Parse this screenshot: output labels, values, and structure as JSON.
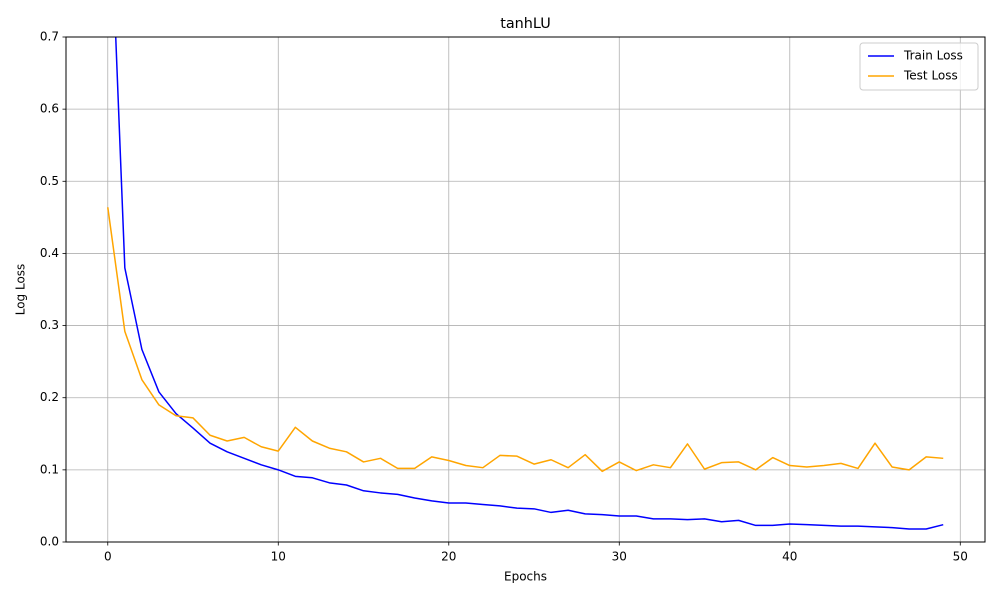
{
  "chart_data": {
    "type": "line",
    "title": "tanhLU",
    "x_label": "Epochs",
    "y_label": "Log Loss",
    "x": [
      0,
      1,
      2,
      3,
      4,
      5,
      6,
      7,
      8,
      9,
      10,
      11,
      12,
      13,
      14,
      15,
      16,
      17,
      18,
      19,
      20,
      21,
      22,
      23,
      24,
      25,
      26,
      27,
      28,
      29,
      30,
      31,
      32,
      33,
      34,
      35,
      36,
      37,
      38,
      39,
      40,
      41,
      42,
      43,
      44,
      45,
      46,
      47,
      48,
      49
    ],
    "series": [
      {
        "name": "Train Loss",
        "color": "#0000ff",
        "values": [
          0.98,
          0.38,
          0.267,
          0.208,
          0.178,
          0.158,
          0.137,
          0.125,
          0.116,
          0.107,
          0.1,
          0.091,
          0.089,
          0.082,
          0.079,
          0.071,
          0.068,
          0.066,
          0.061,
          0.057,
          0.054,
          0.054,
          0.052,
          0.05,
          0.047,
          0.046,
          0.041,
          0.044,
          0.039,
          0.038,
          0.036,
          0.036,
          0.032,
          0.032,
          0.031,
          0.032,
          0.028,
          0.03,
          0.023,
          0.023,
          0.025,
          0.024,
          0.023,
          0.022,
          0.022,
          0.021,
          0.02,
          0.018,
          0.018,
          0.024
        ]
      },
      {
        "name": "Test Loss",
        "color": "#ffa500",
        "values": [
          0.464,
          0.292,
          0.225,
          0.19,
          0.175,
          0.172,
          0.148,
          0.14,
          0.145,
          0.132,
          0.126,
          0.159,
          0.14,
          0.13,
          0.125,
          0.111,
          0.116,
          0.102,
          0.102,
          0.118,
          0.113,
          0.106,
          0.103,
          0.12,
          0.119,
          0.108,
          0.114,
          0.103,
          0.121,
          0.098,
          0.111,
          0.099,
          0.107,
          0.103,
          0.136,
          0.101,
          0.11,
          0.111,
          0.1,
          0.117,
          0.106,
          0.104,
          0.106,
          0.109,
          0.102,
          0.137,
          0.104,
          0.1,
          0.118,
          0.116
        ]
      }
    ],
    "xlim": [
      -2.45,
      51.45
    ],
    "xticks": [
      0,
      10,
      20,
      30,
      40,
      50
    ],
    "ylim": [
      0,
      0.7
    ],
    "yticks": [
      {
        "value": 0,
        "label": "0.0"
      },
      {
        "value": 0.1,
        "label": "0.1"
      },
      {
        "value": 0.2,
        "label": "0.2"
      },
      {
        "value": 0.3,
        "label": "0.3"
      },
      {
        "value": 0.4,
        "label": "0.4"
      },
      {
        "value": 0.5,
        "label": "0.5"
      },
      {
        "value": 0.6,
        "label": "0.6"
      },
      {
        "value": 0.7,
        "label": "0.7"
      }
    ],
    "grid": true,
    "legend": "upper right"
  }
}
